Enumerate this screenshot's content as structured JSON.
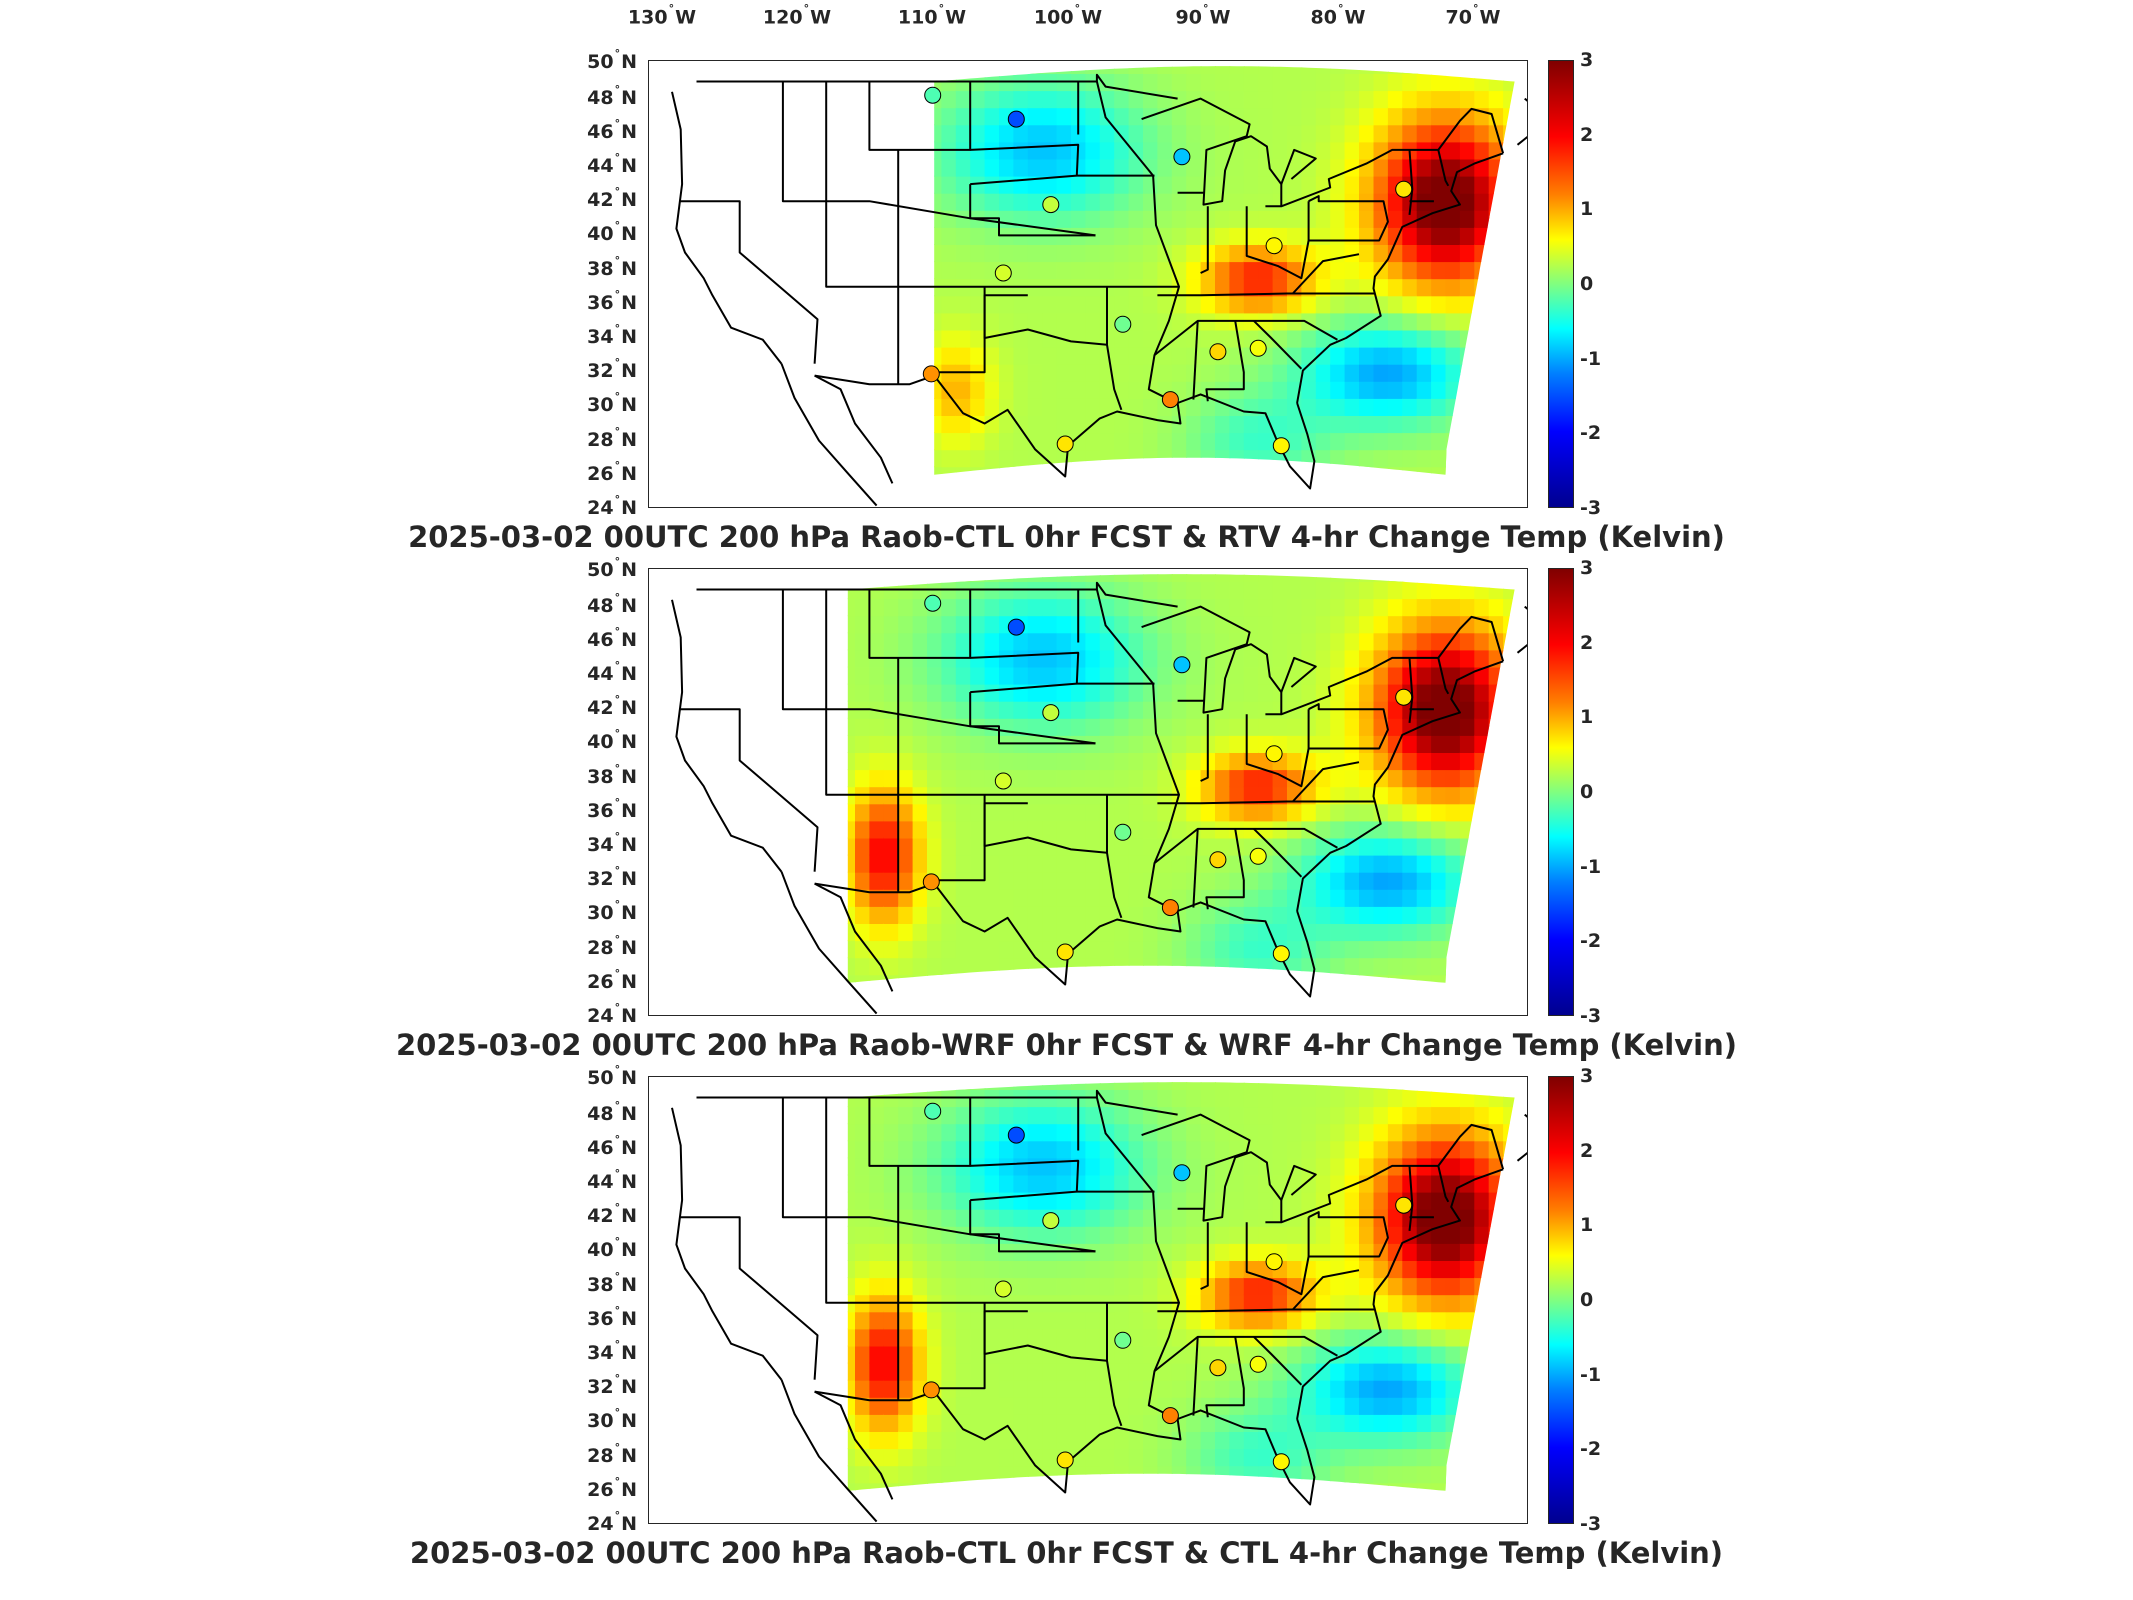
{
  "longitude_labels": [
    {
      "deg": "130",
      "hem": "W"
    },
    {
      "deg": "120",
      "hem": "W"
    },
    {
      "deg": "110",
      "hem": "W"
    },
    {
      "deg": "100",
      "hem": "W"
    },
    {
      "deg": "90",
      "hem": "W"
    },
    {
      "deg": "80",
      "hem": "W"
    },
    {
      "deg": "70",
      "hem": "W"
    }
  ],
  "latitude_labels": [
    {
      "deg": "50",
      "hem": "N"
    },
    {
      "deg": "48",
      "hem": "N"
    },
    {
      "deg": "46",
      "hem": "N"
    },
    {
      "deg": "44",
      "hem": "N"
    },
    {
      "deg": "42",
      "hem": "N"
    },
    {
      "deg": "40",
      "hem": "N"
    },
    {
      "deg": "38",
      "hem": "N"
    },
    {
      "deg": "36",
      "hem": "N"
    },
    {
      "deg": "34",
      "hem": "N"
    },
    {
      "deg": "32",
      "hem": "N"
    },
    {
      "deg": "30",
      "hem": "N"
    },
    {
      "deg": "28",
      "hem": "N"
    },
    {
      "deg": "26",
      "hem": "N"
    },
    {
      "deg": "24",
      "hem": "N"
    }
  ],
  "colorbar": {
    "range": [
      -3,
      3
    ],
    "ticks": [
      "3",
      "2",
      "1",
      "0",
      "-1",
      "-2",
      "-3"
    ],
    "colormap": "jet",
    "colors": [
      "#00008f",
      "#0000ff",
      "#00ffff",
      "#80ff80",
      "#ffff00",
      "#ff8000",
      "#ff0000",
      "#800000"
    ]
  },
  "panels": [
    {
      "title": "2025-03-02 00UTC 200 hPa Raob-CTL 0hr FCST & RTV 4-hr Change Temp (Kelvin)"
    },
    {
      "title": "2025-03-02 00UTC 200 hPa Raob-WRF 0hr FCST & WRF 4-hr Change Temp (Kelvin)"
    },
    {
      "title": "2025-03-02 00UTC 200 hPa Raob-CTL 0hr FCST & CTL 4-hr Change Temp (Kelvin)"
    }
  ],
  "raob_stations": [
    {
      "lon": -106.6,
      "lat": 48.2,
      "value": -0.3
    },
    {
      "lon": -100.8,
      "lat": 46.8,
      "value": -1.8
    },
    {
      "lon": -89.3,
      "lat": 44.6,
      "value": -1.1
    },
    {
      "lon": -73.9,
      "lat": 42.7,
      "value": 0.9
    },
    {
      "lon": -98.4,
      "lat": 41.8,
      "value": 0.4
    },
    {
      "lon": -82.9,
      "lat": 39.4,
      "value": 0.8
    },
    {
      "lon": -101.7,
      "lat": 37.8,
      "value": 0.5
    },
    {
      "lon": -93.4,
      "lat": 34.8,
      "value": -0.1
    },
    {
      "lon": -86.8,
      "lat": 33.2,
      "value": 1.0
    },
    {
      "lon": -84.0,
      "lat": 33.4,
      "value": 0.7
    },
    {
      "lon": -106.7,
      "lat": 31.9,
      "value": 1.4
    },
    {
      "lon": -90.1,
      "lat": 30.4,
      "value": 1.5
    },
    {
      "lon": -97.4,
      "lat": 27.8,
      "value": 0.9
    },
    {
      "lon": -82.4,
      "lat": 27.7,
      "value": 0.8
    }
  ]
}
